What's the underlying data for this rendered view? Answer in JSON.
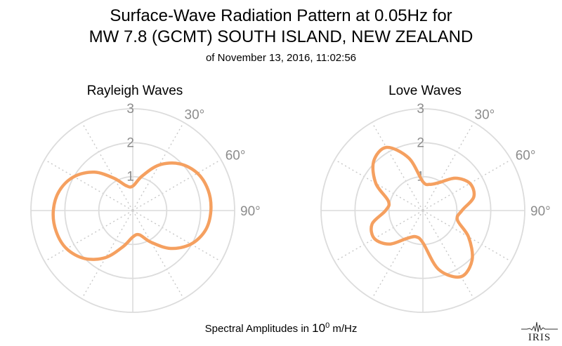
{
  "header": {
    "title_line1": "Surface-Wave Radiation Pattern at 0.05Hz for",
    "title_line2": "MW 7.8 (GCMT) SOUTH ISLAND, NEW ZEALAND",
    "subtitle": "of November 13, 2016, 11:02:56"
  },
  "footer": {
    "label_prefix": "Spectral Amplitudes in ",
    "label_base": "10",
    "label_exponent": "0",
    "label_suffix": " m/Hz",
    "logo_text": "IRIS"
  },
  "colors": {
    "curve": "#F5A060",
    "grid_solid": "#dcdcdc",
    "grid_dotted": "#c8c8c8",
    "tick_text": "#8c8c8c"
  },
  "chart_data": [
    {
      "type": "polar",
      "title": "Rayleigh Waves",
      "theta_direction": "clockwise",
      "theta_zero": "north",
      "r_ticks": [
        1,
        2,
        3
      ],
      "r_max": 3,
      "theta_tick_labels": [
        "30°",
        "60°",
        "90°"
      ],
      "theta_deg": [
        0,
        15,
        30,
        45,
        60,
        75,
        90,
        105,
        120,
        135,
        150,
        165,
        180,
        195,
        210,
        225,
        240,
        255,
        270,
        285,
        300,
        315,
        330,
        345
      ],
      "r": [
        0.72,
        1.05,
        1.55,
        1.95,
        2.2,
        2.3,
        2.3,
        2.22,
        1.98,
        1.58,
        1.08,
        0.74,
        0.78,
        1.1,
        1.6,
        2.0,
        2.25,
        2.34,
        2.34,
        2.24,
        2.0,
        1.6,
        1.1,
        0.76
      ]
    },
    {
      "type": "polar",
      "title": "Love Waves",
      "theta_direction": "clockwise",
      "theta_zero": "north",
      "r_ticks": [
        1,
        2,
        3
      ],
      "r_max": 3,
      "theta_tick_labels": [
        "30°",
        "60°",
        "90°"
      ],
      "theta_deg": [
        0,
        15,
        30,
        45,
        60,
        75,
        90,
        105,
        120,
        135,
        150,
        165,
        180,
        195,
        210,
        225,
        240,
        255,
        270,
        285,
        300,
        315,
        330,
        345
      ],
      "r": [
        0.85,
        0.8,
        0.95,
        1.35,
        1.6,
        1.55,
        1.15,
        1.05,
        1.55,
        2.05,
        2.25,
        1.8,
        0.95,
        0.8,
        0.95,
        1.4,
        1.65,
        1.55,
        1.1,
        1.05,
        1.6,
        2.05,
        2.15,
        1.6
      ]
    }
  ]
}
